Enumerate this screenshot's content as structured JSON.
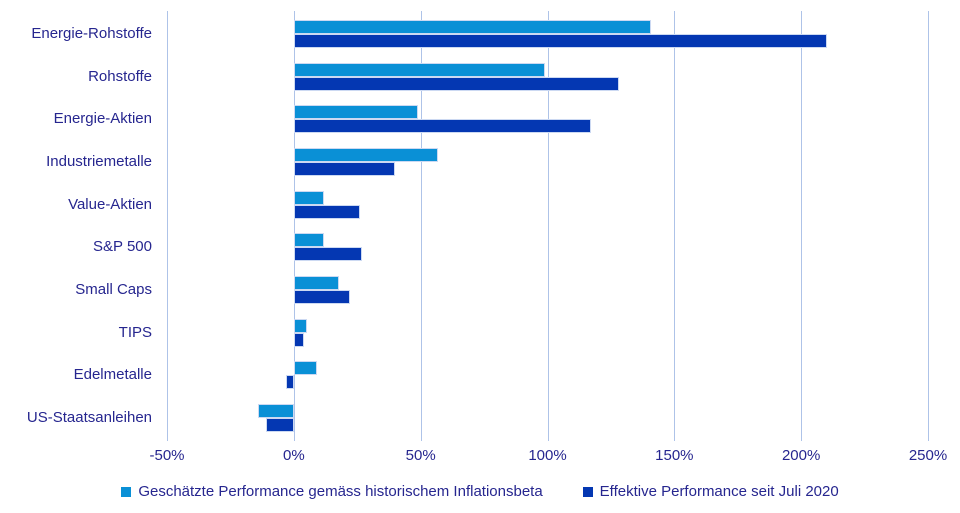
{
  "chart_data": {
    "type": "bar",
    "orientation": "horizontal",
    "title": "",
    "categories": [
      "Energie-Rohstoffe",
      "Rohstoffe",
      "Energie-Aktien",
      "Industriemetalle",
      "Value-Aktien",
      "S&P 500",
      "Small Caps",
      "TIPS",
      "Edelmetalle",
      "US-Staatsanleihen"
    ],
    "series": [
      {
        "name": "Geschätzte Performance gemäss historischem Inflationsbeta",
        "color": "#0a90d6",
        "values": [
          141,
          99,
          49,
          57,
          12,
          12,
          18,
          5,
          9,
          -14
        ]
      },
      {
        "name": "Effektive Performance seit Juli 2020",
        "color": "#0437b2",
        "values": [
          210,
          128,
          117,
          40,
          26,
          27,
          22,
          4,
          -3,
          -11
        ]
      }
    ],
    "x_axis": {
      "min": -50,
      "max": 250,
      "tick_step": 50,
      "tick_labels": [
        "-50%",
        "0%",
        "50%",
        "100%",
        "150%",
        "200%",
        "250%"
      ],
      "unit": "%"
    },
    "grid": "vertical",
    "legend_position": "bottom"
  },
  "colors": {
    "background": "#ffffff",
    "gridline": "#aec3e8",
    "text": "#26268f",
    "bar_border": "#ccd9f2",
    "series_estimated": "#0a90d6",
    "series_effective": "#0437b2"
  }
}
